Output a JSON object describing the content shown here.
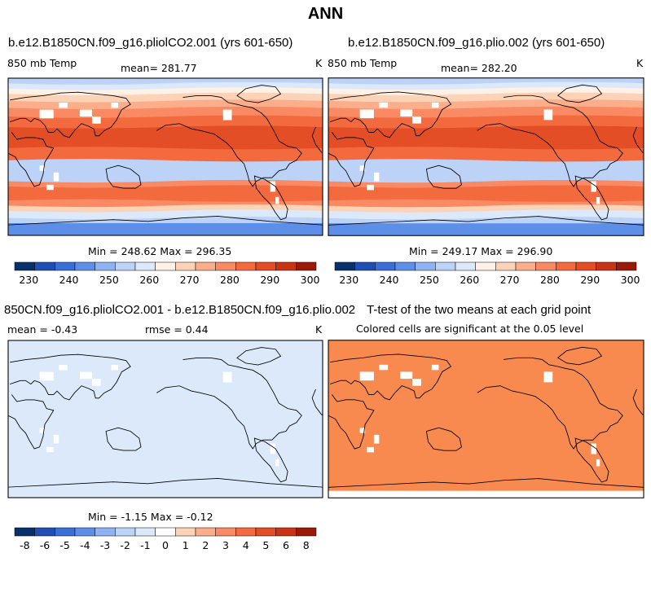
{
  "page": {
    "title": "ANN"
  },
  "panels": [
    {
      "title": "b.e12.B1850CN.f09_g16.pliolCO2.001 (yrs 601-650)",
      "left_label": "850 mb Temp",
      "center_label": "mean= 281.77",
      "units": "K",
      "stats": "Min = 248.62 Max = 296.35",
      "field": "absolute"
    },
    {
      "title": "b.e12.B1850CN.f09_g16.plio.002 (yrs 601-650)",
      "left_label": "850 mb Temp",
      "center_label": "mean= 282.20",
      "units": "K",
      "stats": "Min = 249.17 Max = 296.90",
      "field": "absolute"
    },
    {
      "title": "850CN.f09_g16.pliolCO2.001 - b.e12.B1850CN.f09_g16.plio.002",
      "left_label": "mean =   -0.43",
      "center_label": "rmse =    0.44",
      "units": "K",
      "stats": "Min = -1.15 Max = -0.12",
      "field": "difference"
    },
    {
      "title": "T-test of the two means at each grid point",
      "left_label": "Colored cells are significant at the 0.05 level",
      "center_label": "",
      "units": "",
      "stats": "",
      "field": "significance"
    }
  ],
  "chart_data": [
    {
      "type": "heatmap",
      "title": "b.e12.B1850CN.f09_g16.pliolCO2.001 (yrs 601-650)",
      "variable": "850 mb Temp",
      "units": "K",
      "mean": 281.77,
      "min": 248.62,
      "max": 296.35,
      "colorbar_ticks": [
        230,
        240,
        250,
        260,
        270,
        280,
        290,
        300
      ]
    },
    {
      "type": "heatmap",
      "title": "b.e12.B1850CN.f09_g16.plio.002 (yrs 601-650)",
      "variable": "850 mb Temp",
      "units": "K",
      "mean": 282.2,
      "min": 249.17,
      "max": 296.9,
      "colorbar_ticks": [
        230,
        240,
        250,
        260,
        270,
        280,
        290,
        300
      ]
    },
    {
      "type": "heatmap",
      "title": "850CN.f09_g16.pliolCO2.001 - b.e12.B1850CN.f09_g16.plio.002",
      "units": "K",
      "mean": -0.43,
      "rmse": 0.44,
      "min": -1.15,
      "max": -0.12,
      "colorbar_ticks": [
        "-8",
        "-6",
        "-5",
        "-4",
        "-3",
        "-2",
        "-1",
        "0",
        "1",
        "2",
        "3",
        "4",
        "5",
        "6",
        "8"
      ]
    },
    {
      "type": "heatmap",
      "title": "T-test of the two means at each grid point",
      "note": "Colored cells are significant at the 0.05 level"
    }
  ],
  "colors": {
    "temp_scale": [
      "#08306b",
      "#1f4fb4",
      "#3b6fd8",
      "#5e8fe8",
      "#8fb3f2",
      "#bcd3f7",
      "#dce9fb",
      "#fff1e6",
      "#fdd3b8",
      "#fcae8b",
      "#f98a63",
      "#f26a3d",
      "#e44e26",
      "#c93414",
      "#9a1a08"
    ],
    "diff_scale": [
      "#08306b",
      "#1f4fb4",
      "#3b6fd8",
      "#5e8fe8",
      "#8fb3f2",
      "#bcd3f7",
      "#dce9fb",
      "#ffffff",
      "#fdd3b8",
      "#fcae8b",
      "#f98a63",
      "#f26a3d",
      "#e44e26",
      "#c93414",
      "#9a1a08"
    ],
    "diff_fill": "#dce9fb",
    "signif_fill": "#f98a4f"
  }
}
